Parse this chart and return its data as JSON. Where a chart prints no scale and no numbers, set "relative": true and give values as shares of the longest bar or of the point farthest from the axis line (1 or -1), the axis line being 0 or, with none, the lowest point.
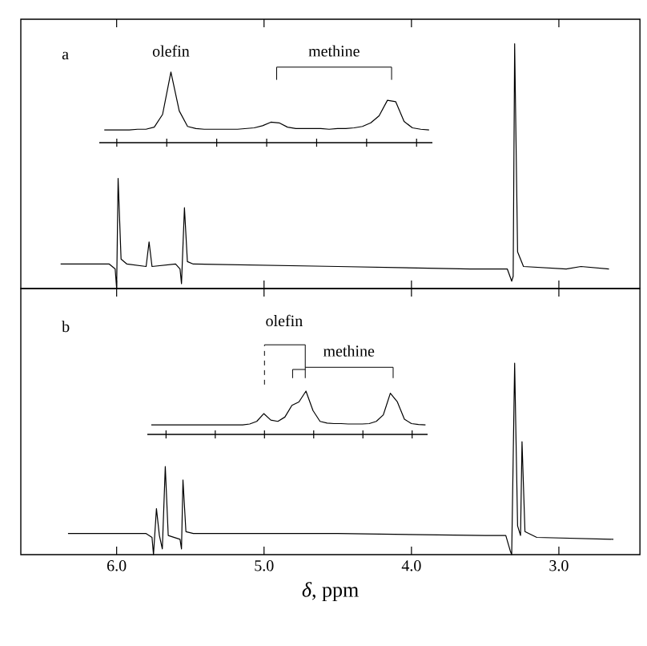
{
  "chart_data": [
    {
      "type": "line",
      "title": "a",
      "relative": true,
      "xlim": [
        6.65,
        2.45
      ],
      "xticks": [
        {
          "value": 6,
          "label": null
        },
        {
          "value": 5,
          "label": null
        },
        {
          "value": 4,
          "label": null
        },
        {
          "value": 3,
          "label": null
        }
      ],
      "tick_labels": false,
      "x": [
        6.38,
        6.05,
        6.01,
        6.0,
        5.99,
        5.97,
        5.93,
        5.8,
        5.78,
        5.76,
        5.6,
        5.57,
        5.56,
        5.54,
        5.52,
        5.48,
        4.5,
        3.6,
        3.35,
        3.32,
        3.31,
        3.3,
        3.28,
        3.24,
        2.95,
        2.85,
        2.66
      ],
      "series": [
        {
          "color": "#000000",
          "values": [
            0.1,
            0.1,
            0.08,
            0.0,
            0.45,
            0.12,
            0.1,
            0.09,
            0.19,
            0.09,
            0.1,
            0.08,
            0.02,
            0.33,
            0.11,
            0.1,
            0.09,
            0.08,
            0.08,
            0.03,
            0.05,
            1.0,
            0.15,
            0.09,
            0.08,
            0.09,
            0.08
          ]
        }
      ]
    },
    {
      "type": "line",
      "relative": true,
      "tick_labels": false,
      "annotations": [
        "olefin",
        "methine"
      ],
      "categories": [
        null,
        null,
        null,
        null,
        null,
        null,
        null,
        null,
        null,
        null,
        null,
        null,
        null,
        null,
        null,
        null,
        null,
        null,
        null,
        null,
        null,
        null,
        null,
        null,
        null,
        null,
        null,
        null,
        null,
        null,
        null,
        null,
        null,
        null,
        null,
        null,
        null,
        null,
        null,
        null
      ],
      "series": [
        {
          "color": "#000000",
          "values": [
            0.18,
            0.18,
            0.18,
            0.18,
            0.19,
            0.19,
            0.22,
            0.4,
            1.0,
            0.45,
            0.23,
            0.2,
            0.19,
            0.19,
            0.19,
            0.19,
            0.19,
            0.2,
            0.21,
            0.24,
            0.29,
            0.28,
            0.22,
            0.2,
            0.2,
            0.2,
            0.2,
            0.19,
            0.2,
            0.2,
            0.21,
            0.23,
            0.28,
            0.38,
            0.6,
            0.58,
            0.3,
            0.21,
            0.19,
            0.18
          ]
        }
      ]
    },
    {
      "type": "line",
      "title": "b",
      "xlabel": "*δ*, ppm",
      "relative": true,
      "xlim": [
        6.65,
        2.45
      ],
      "xticks": [
        {
          "value": 6,
          "label": "6.0"
        },
        {
          "value": 5,
          "label": "5.0"
        },
        {
          "value": 4,
          "label": "4.0"
        },
        {
          "value": 3,
          "label": "3.0"
        }
      ],
      "tick_labels": "x",
      "x": [
        6.33,
        5.8,
        5.76,
        5.75,
        5.73,
        5.71,
        5.69,
        5.67,
        5.65,
        5.57,
        5.56,
        5.55,
        5.53,
        5.48,
        4.5,
        3.5,
        3.36,
        3.33,
        3.32,
        3.3,
        3.28,
        3.26,
        3.25,
        3.23,
        3.15,
        2.63
      ],
      "series": [
        {
          "color": "#000000",
          "values": [
            0.11,
            0.11,
            0.09,
            0.0,
            0.24,
            0.1,
            0.03,
            0.46,
            0.1,
            0.08,
            0.03,
            0.39,
            0.12,
            0.11,
            0.11,
            0.1,
            0.1,
            0.02,
            0.0,
            1.0,
            0.15,
            0.1,
            0.59,
            0.12,
            0.09,
            0.08
          ]
        }
      ]
    },
    {
      "type": "line",
      "relative": true,
      "tick_labels": false,
      "annotations": [
        "olefin",
        "methine"
      ],
      "categories": [
        null,
        null,
        null,
        null,
        null,
        null,
        null,
        null,
        null,
        null,
        null,
        null,
        null,
        null,
        null,
        null,
        null,
        null,
        null,
        null,
        null,
        null,
        null,
        null,
        null,
        null,
        null,
        null,
        null,
        null,
        null,
        null,
        null,
        null,
        null,
        null,
        null,
        null,
        null,
        null
      ],
      "series": [
        {
          "color": "#000000",
          "values": [
            0.22,
            0.22,
            0.22,
            0.22,
            0.22,
            0.22,
            0.22,
            0.22,
            0.22,
            0.22,
            0.22,
            0.22,
            0.22,
            0.22,
            0.24,
            0.3,
            0.48,
            0.33,
            0.3,
            0.4,
            0.67,
            0.75,
            1.0,
            0.55,
            0.3,
            0.26,
            0.25,
            0.25,
            0.24,
            0.24,
            0.24,
            0.25,
            0.3,
            0.45,
            0.95,
            0.75,
            0.35,
            0.25,
            0.23,
            0.22
          ]
        }
      ]
    }
  ]
}
